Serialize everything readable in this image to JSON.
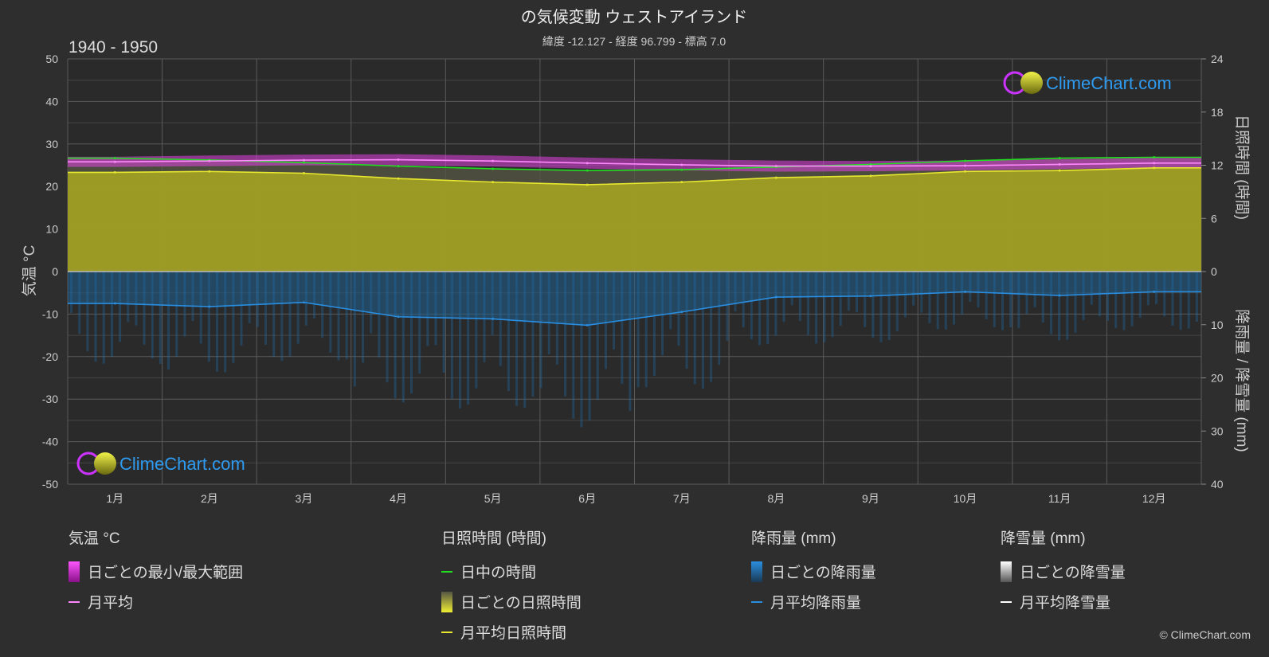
{
  "title": "の気候変動 ウェストアイランド",
  "subtitle": "緯度 -12.127 - 経度 96.799 - 標高 7.0",
  "period": "1940 - 1950",
  "watermark": "ClimeChart.com",
  "copyright": "© ClimeChart.com",
  "colors": {
    "background": "#2e2e2e",
    "temp_range": "#e040e0",
    "temp_avg": "#ff88ff",
    "daylight": "#22dd22",
    "sunshine_fill": "#a8a820",
    "sunshine_avg": "#e8e830",
    "rain_fill": "#1f5f8f",
    "rain_avg": "#2a8ee0",
    "snow_avg": "#ffffff",
    "logo": "#2e9bf0"
  },
  "chart_data": {
    "type": "line",
    "categories": [
      "1月",
      "2月",
      "3月",
      "4月",
      "5月",
      "6月",
      "7月",
      "8月",
      "9月",
      "10月",
      "11月",
      "12月"
    ],
    "axes": {
      "left": {
        "label": "気温 °C",
        "ylim": [
          -50,
          50
        ],
        "ticks": [
          "50",
          "40",
          "30",
          "20",
          "10",
          "0",
          "-10",
          "-20",
          "-30",
          "-40",
          "-50"
        ]
      },
      "right_top": {
        "label": "日照時間 (時間)",
        "ylim": [
          0,
          24
        ],
        "ticks": [
          "24",
          "18",
          "12",
          "6",
          "0"
        ]
      },
      "right_bottom": {
        "label": "降雨量 / 降雪量 (mm)",
        "ylim": [
          0,
          40
        ],
        "ticks": [
          "10",
          "20",
          "30",
          "40"
        ]
      }
    },
    "grid": true,
    "series": [
      {
        "name": "月平均",
        "axis": "temperature",
        "values": [
          25.8,
          26.0,
          26.2,
          26.3,
          26.0,
          25.5,
          25.1,
          24.8,
          24.8,
          24.9,
          25.2,
          25.5
        ]
      },
      {
        "name": "日ごとの最小/最大範囲",
        "axis": "temperature",
        "min": [
          24.6,
          24.8,
          25.0,
          25.0,
          24.7,
          24.2,
          23.8,
          23.5,
          23.6,
          23.8,
          24.1,
          24.4
        ],
        "max": [
          27.0,
          27.3,
          27.5,
          27.6,
          27.3,
          26.8,
          26.4,
          26.1,
          26.0,
          26.1,
          26.4,
          26.7
        ]
      },
      {
        "name": "日中の時間",
        "axis": "sunshine",
        "values": [
          12.8,
          12.6,
          12.3,
          11.9,
          11.6,
          11.4,
          11.5,
          11.8,
          12.1,
          12.5,
          12.8,
          12.9
        ]
      },
      {
        "name": "月平均日照時間",
        "axis": "sunshine",
        "values": [
          11.2,
          11.3,
          11.1,
          10.5,
          10.1,
          9.8,
          10.1,
          10.6,
          10.8,
          11.3,
          11.4,
          11.7
        ]
      },
      {
        "name": "月平均降雨量",
        "axis": "precipitation",
        "values": [
          6.0,
          6.6,
          5.8,
          8.5,
          8.9,
          10.1,
          7.6,
          4.8,
          4.6,
          3.8,
          4.5,
          3.8
        ]
      },
      {
        "name": "月平均降雪量",
        "axis": "precipitation",
        "values": [
          0,
          0,
          0,
          0,
          0,
          0,
          0,
          0,
          0,
          0,
          0,
          0
        ]
      }
    ]
  },
  "legend": {
    "groups": [
      {
        "title": "気温 °C",
        "items": [
          {
            "label": "日ごとの最小/最大範囲",
            "icon": "range-swatch"
          },
          {
            "label": "月平均",
            "icon": "line"
          }
        ]
      },
      {
        "title": "日照時間 (時間)",
        "items": [
          {
            "label": "日中の時間",
            "icon": "line"
          },
          {
            "label": "日ごとの日照時間",
            "icon": "gradient-swatch"
          },
          {
            "label": "月平均日照時間",
            "icon": "line"
          }
        ]
      },
      {
        "title": "降雨量 (mm)",
        "items": [
          {
            "label": "日ごとの降雨量",
            "icon": "gradient-swatch"
          },
          {
            "label": "月平均降雨量",
            "icon": "line"
          }
        ]
      },
      {
        "title": "降雪量 (mm)",
        "items": [
          {
            "label": "日ごとの降雪量",
            "icon": "gradient-swatch"
          },
          {
            "label": "月平均降雪量",
            "icon": "line"
          }
        ]
      }
    ]
  }
}
